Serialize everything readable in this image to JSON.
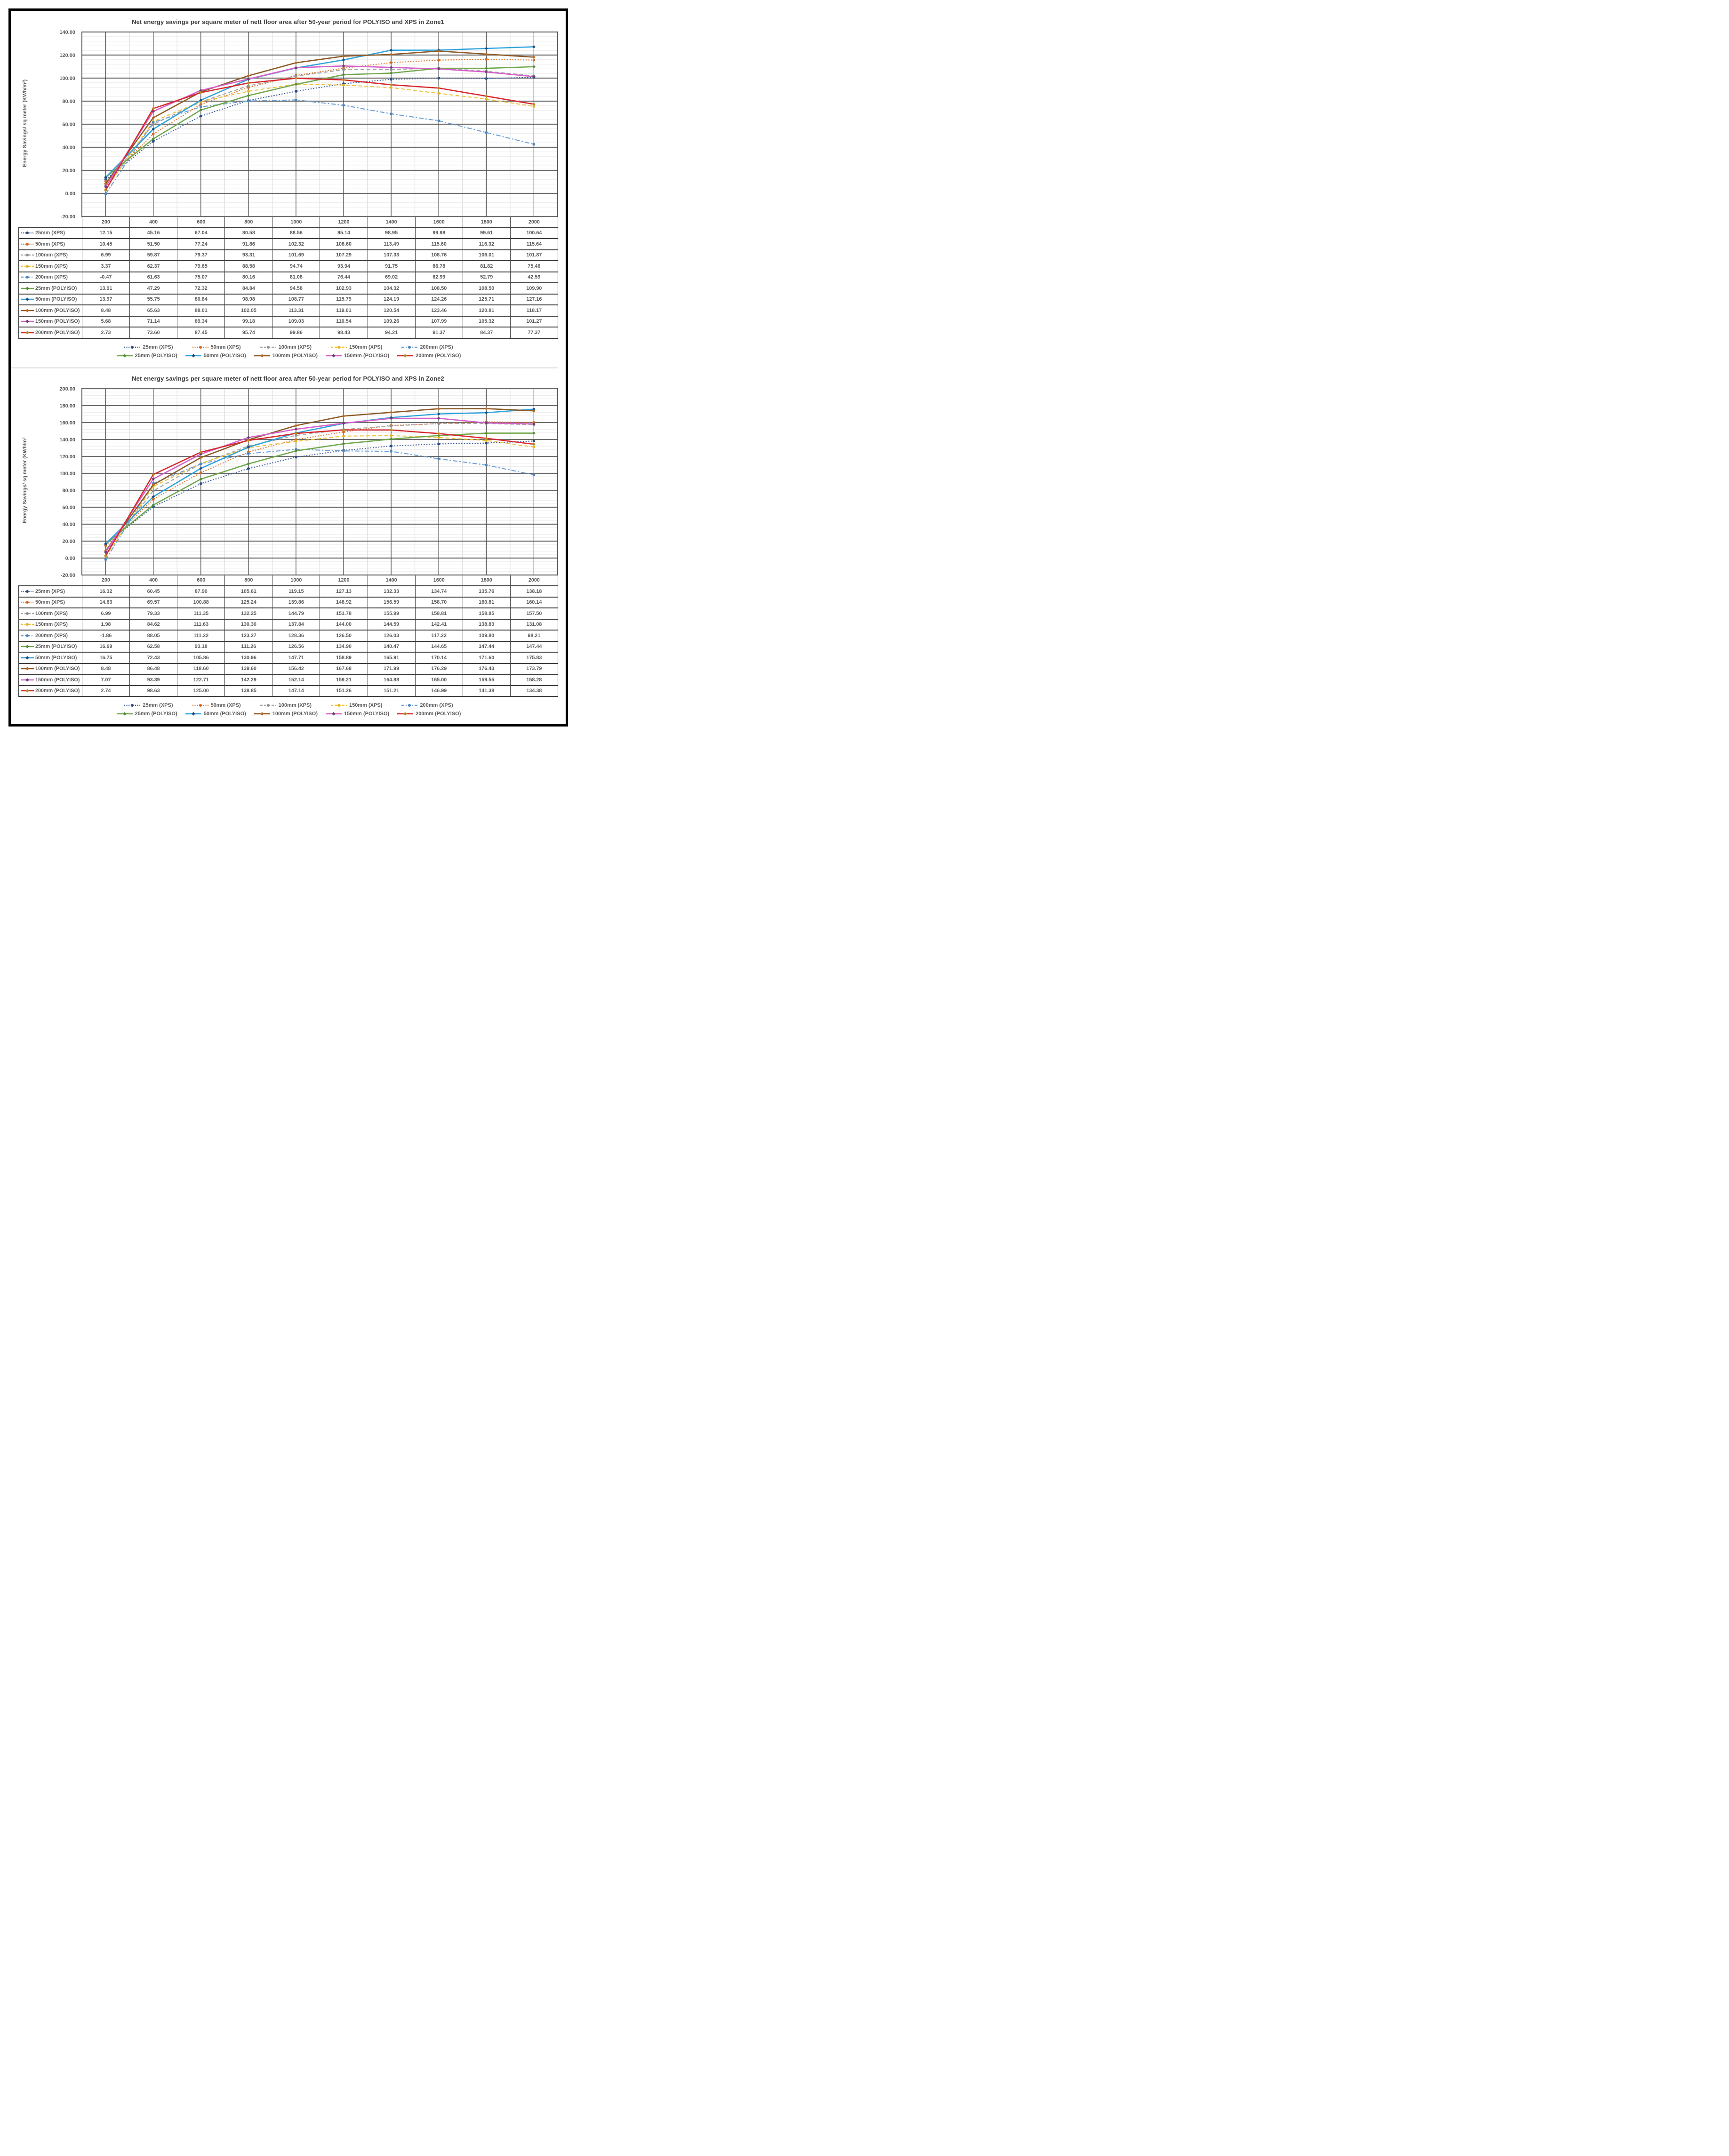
{
  "chart_data": [
    {
      "type": "line",
      "title": "Net energy savings per square meter of nett floor area after 50-year period for POLYISO and XPS in Zone1",
      "ylabel": "Energy Savings/ sq meter (KWh/m²)",
      "xlabel": "",
      "y_min": -20,
      "y_max": 140,
      "y_major_step": 20,
      "y_minor_step": 4,
      "grid": true,
      "legend_position": "bottom",
      "categories": [
        200,
        400,
        600,
        800,
        1000,
        1200,
        1400,
        1600,
        1800,
        2000
      ],
      "series": [
        {
          "name": "25mm (XPS)",
          "line_color": "#3E5F9E",
          "marker_color": "#2E4C80",
          "dash": "dot",
          "marker": "circle",
          "values": [
            12.15,
            45.16,
            67.04,
            80.58,
            88.56,
            95.14,
            98.95,
            99.98,
            99.61,
            100.64
          ]
        },
        {
          "name": "50mm (XPS)",
          "line_color": "#E0782F",
          "marker_color": "#D06A24",
          "dash": "dot",
          "marker": "circle",
          "values": [
            10.45,
            51.5,
            77.24,
            91.86,
            102.32,
            108.6,
            113.49,
            115.6,
            116.32,
            115.64
          ]
        },
        {
          "name": "100mm (XPS)",
          "line_color": "#A6A6A6",
          "marker_color": "#8F8F8F",
          "dash": "dash",
          "marker": "circle",
          "values": [
            6.99,
            59.87,
            79.37,
            93.31,
            101.69,
            107.29,
            107.33,
            108.76,
            106.01,
            101.87
          ]
        },
        {
          "name": "150mm (XPS)",
          "line_color": "#EEC23C",
          "marker_color": "#E3B52B",
          "dash": "dash",
          "marker": "circle",
          "values": [
            3.37,
            62.37,
            79.65,
            88.58,
            94.74,
            93.94,
            91.75,
            86.78,
            81.82,
            75.46
          ]
        },
        {
          "name": "200mm (XPS)",
          "line_color": "#6E9FD4",
          "marker_color": "#4E86BE",
          "dash": "dashdot",
          "marker": "circle",
          "values": [
            -0.47,
            61.63,
            75.07,
            80.16,
            81.08,
            76.44,
            69.02,
            62.99,
            52.79,
            42.59
          ]
        },
        {
          "name": "25mm (POLYISO)",
          "line_color": "#70A84D",
          "marker_color": "#588B39",
          "dash": "solid",
          "marker": "diamond",
          "values": [
            13.91,
            47.29,
            72.32,
            84.84,
            94.58,
            102.93,
            104.32,
            108.5,
            108.5,
            109.9
          ]
        },
        {
          "name": "50mm (POLYISO)",
          "line_color": "#2FA3DB",
          "marker_color": "#1F4A7D",
          "dash": "solid",
          "marker": "diamond",
          "values": [
            13.97,
            55.75,
            80.84,
            98.98,
            108.77,
            115.79,
            124.19,
            124.26,
            125.71,
            127.16
          ]
        },
        {
          "name": "100mm (POLYISO)",
          "line_color": "#8B5A28",
          "marker_color": "#BC671E",
          "dash": "solid",
          "marker": "diamond",
          "values": [
            8.48,
            65.63,
            88.01,
            102.05,
            113.31,
            119.01,
            120.54,
            123.46,
            120.81,
            118.17
          ]
        },
        {
          "name": "150mm (POLYISO)",
          "line_color": "#D55FC9",
          "marker_color": "#63426E",
          "dash": "solid",
          "marker": "diamond",
          "values": [
            5.68,
            71.14,
            89.34,
            99.18,
            109.03,
            110.54,
            109.26,
            107.99,
            105.32,
            101.27
          ]
        },
        {
          "name": "200mm (POLYISO)",
          "line_color": "#D7282E",
          "marker_color": "#B08F1F",
          "dash": "solid",
          "marker": "diamond",
          "values": [
            2.73,
            73.6,
            87.45,
            95.74,
            99.86,
            98.43,
            94.21,
            91.37,
            84.37,
            77.37
          ]
        }
      ]
    },
    {
      "type": "line",
      "title": "Net energy savings per square meter of nett floor area after 50-year period for POLYISO and XPS in Zone2",
      "ylabel": "Energy Savings/ sq meter (KWh/m²",
      "xlabel": "",
      "y_min": -20,
      "y_max": 200,
      "y_major_step": 20,
      "y_minor_step": 4,
      "grid": true,
      "legend_position": "bottom",
      "categories": [
        200,
        400,
        600,
        800,
        1000,
        1200,
        1400,
        1600,
        1800,
        2000
      ],
      "series": [
        {
          "name": "25mm (XPS)",
          "line_color": "#3E5F9E",
          "marker_color": "#2E4C80",
          "dash": "dot",
          "marker": "circle",
          "values": [
            16.32,
            60.45,
            87.9,
            105.61,
            119.15,
            127.13,
            132.33,
            134.74,
            135.76,
            138.18
          ]
        },
        {
          "name": "50mm (XPS)",
          "line_color": "#E0782F",
          "marker_color": "#D06A24",
          "dash": "dot",
          "marker": "circle",
          "values": [
            14.63,
            69.57,
            100.88,
            125.24,
            139.86,
            148.92,
            156.59,
            158.7,
            160.81,
            160.14
          ]
        },
        {
          "name": "100mm (XPS)",
          "line_color": "#A6A6A6",
          "marker_color": "#8F8F8F",
          "dash": "dash",
          "marker": "circle",
          "values": [
            6.99,
            79.33,
            111.35,
            132.25,
            144.79,
            151.78,
            155.99,
            158.81,
            158.85,
            157.5
          ]
        },
        {
          "name": "150mm (XPS)",
          "line_color": "#EEC23C",
          "marker_color": "#E3B52B",
          "dash": "dash",
          "marker": "circle",
          "values": [
            1.98,
            84.62,
            111.63,
            130.3,
            137.84,
            144.0,
            144.59,
            142.41,
            138.83,
            131.08
          ]
        },
        {
          "name": "200mm (XPS)",
          "line_color": "#6E9FD4",
          "marker_color": "#4E86BE",
          "dash": "dashdot",
          "marker": "circle",
          "values": [
            -1.86,
            88.05,
            111.22,
            123.27,
            128.36,
            126.5,
            126.03,
            117.22,
            109.8,
            98.21
          ]
        },
        {
          "name": "25mm (POLYISO)",
          "line_color": "#70A84D",
          "marker_color": "#588B39",
          "dash": "solid",
          "marker": "diamond",
          "values": [
            16.69,
            62.58,
            93.18,
            111.26,
            126.56,
            134.9,
            140.47,
            144.65,
            147.44,
            147.44
          ]
        },
        {
          "name": "50mm (POLYISO)",
          "line_color": "#2FA3DB",
          "marker_color": "#1F4A7D",
          "dash": "solid",
          "marker": "diamond",
          "values": [
            16.75,
            72.43,
            105.86,
            130.96,
            147.71,
            158.89,
            165.91,
            170.14,
            171.6,
            175.83
          ]
        },
        {
          "name": "100mm (POLYISO)",
          "line_color": "#8B5A28",
          "marker_color": "#BC671E",
          "dash": "solid",
          "marker": "diamond",
          "values": [
            8.48,
            86.48,
            118.6,
            139.6,
            156.42,
            167.68,
            171.99,
            176.29,
            176.43,
            173.79
          ]
        },
        {
          "name": "150mm (POLYISO)",
          "line_color": "#D55FC9",
          "marker_color": "#63426E",
          "dash": "solid",
          "marker": "diamond",
          "values": [
            7.07,
            93.39,
            122.71,
            142.29,
            152.14,
            159.21,
            164.88,
            165.0,
            159.55,
            158.28
          ]
        },
        {
          "name": "200mm (POLYISO)",
          "line_color": "#D7282E",
          "marker_color": "#B08F1F",
          "dash": "solid",
          "marker": "diamond",
          "values": [
            2.74,
            98.63,
            125.0,
            138.85,
            147.14,
            151.26,
            151.21,
            146.99,
            141.38,
            134.38
          ]
        }
      ]
    }
  ]
}
